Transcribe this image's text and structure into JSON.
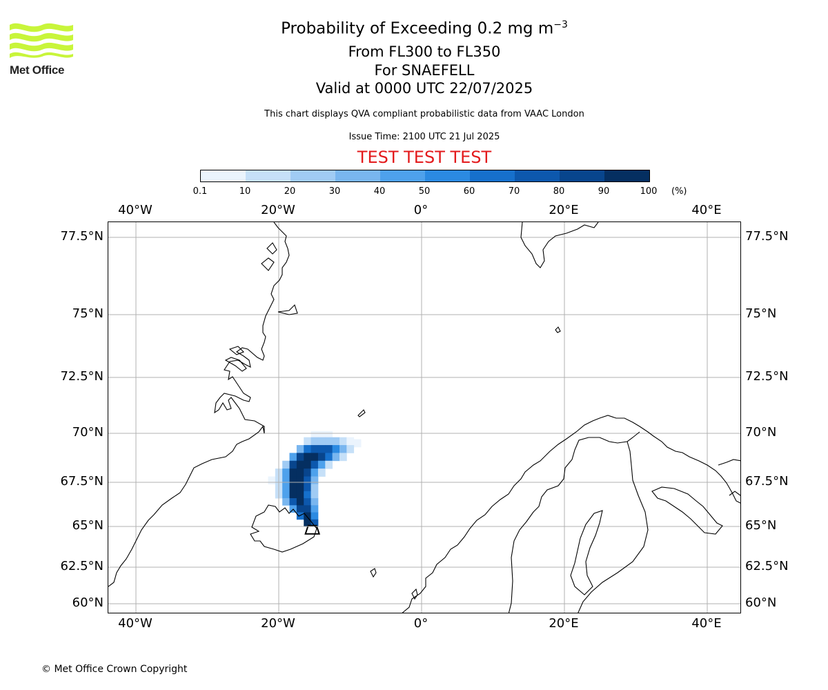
{
  "logo": {
    "text": "Met Office",
    "color": "#c8f53a"
  },
  "title": {
    "line1_main": "Probability of Exceeding 0.2 mg m",
    "line1_sup": "−3",
    "line2": "From FL300 to FL350",
    "line3": "For SNAEFELL",
    "line4": "Valid at 0000 UTC 22/07/2025"
  },
  "subtitle": "This chart displays QVA compliant probabilistic data from VAAC London",
  "issue_time": "Issue Time: 2100 UTC 21 Jul 2025",
  "test_banner": "TEST TEST TEST",
  "colorbar": {
    "ticks": [
      "0.1",
      "10",
      "20",
      "30",
      "40",
      "50",
      "60",
      "70",
      "80",
      "90",
      "100"
    ],
    "unit": "(%)",
    "colors": [
      "#ebf4fd",
      "#c6e0f8",
      "#a0cbf4",
      "#79b6ef",
      "#4ea1ec",
      "#2b8ae2",
      "#1670cc",
      "#0d58ad",
      "#08458d",
      "#052f61"
    ]
  },
  "axes": {
    "lon_labels": [
      "40°W",
      "20°W",
      "0°",
      "20°E",
      "40°E"
    ],
    "lat_labels": [
      "77.5°N",
      "75°N",
      "72.5°N",
      "70°N",
      "67.5°N",
      "65°N",
      "62.5°N",
      "60°N"
    ]
  },
  "plume": {
    "source": "Snaefell",
    "cells": [
      {
        "lon": -15.0,
        "lat": 69.9,
        "p": 5
      },
      {
        "lon": -14.0,
        "lat": 69.9,
        "p": 5
      },
      {
        "lon": -13.0,
        "lat": 69.9,
        "p": 5
      },
      {
        "lon": -16.0,
        "lat": 69.6,
        "p": 15
      },
      {
        "lon": -15.0,
        "lat": 69.6,
        "p": 25
      },
      {
        "lon": -14.0,
        "lat": 69.6,
        "p": 25
      },
      {
        "lon": -13.0,
        "lat": 69.6,
        "p": 25
      },
      {
        "lon": -12.0,
        "lat": 69.6,
        "p": 25
      },
      {
        "lon": -11.0,
        "lat": 69.6,
        "p": 15
      },
      {
        "lon": -10.0,
        "lat": 69.6,
        "p": 5
      },
      {
        "lon": -9.0,
        "lat": 69.5,
        "p": 5
      },
      {
        "lon": -17.0,
        "lat": 69.2,
        "p": 35
      },
      {
        "lon": -16.0,
        "lat": 69.2,
        "p": 65
      },
      {
        "lon": -15.0,
        "lat": 69.2,
        "p": 75
      },
      {
        "lon": -14.0,
        "lat": 69.2,
        "p": 75
      },
      {
        "lon": -13.0,
        "lat": 69.2,
        "p": 75
      },
      {
        "lon": -12.0,
        "lat": 69.2,
        "p": 55
      },
      {
        "lon": -11.0,
        "lat": 69.2,
        "p": 35
      },
      {
        "lon": -10.0,
        "lat": 69.2,
        "p": 15
      },
      {
        "lon": -18.0,
        "lat": 68.8,
        "p": 45
      },
      {
        "lon": -17.0,
        "lat": 68.8,
        "p": 85
      },
      {
        "lon": -16.0,
        "lat": 68.8,
        "p": 95
      },
      {
        "lon": -15.0,
        "lat": 68.8,
        "p": 95
      },
      {
        "lon": -14.0,
        "lat": 68.8,
        "p": 85
      },
      {
        "lon": -13.0,
        "lat": 68.8,
        "p": 65
      },
      {
        "lon": -12.0,
        "lat": 68.8,
        "p": 35
      },
      {
        "lon": -11.0,
        "lat": 68.8,
        "p": 15
      },
      {
        "lon": -19.0,
        "lat": 68.4,
        "p": 25
      },
      {
        "lon": -18.0,
        "lat": 68.4,
        "p": 85
      },
      {
        "lon": -17.0,
        "lat": 68.4,
        "p": 95
      },
      {
        "lon": -16.0,
        "lat": 68.4,
        "p": 95
      },
      {
        "lon": -15.0,
        "lat": 68.4,
        "p": 75
      },
      {
        "lon": -14.0,
        "lat": 68.4,
        "p": 45
      },
      {
        "lon": -13.0,
        "lat": 68.4,
        "p": 15
      },
      {
        "lon": -20.0,
        "lat": 68.0,
        "p": 15
      },
      {
        "lon": -19.0,
        "lat": 68.0,
        "p": 45
      },
      {
        "lon": -18.0,
        "lat": 68.0,
        "p": 95
      },
      {
        "lon": -17.0,
        "lat": 68.0,
        "p": 95
      },
      {
        "lon": -16.0,
        "lat": 68.0,
        "p": 85
      },
      {
        "lon": -15.0,
        "lat": 68.0,
        "p": 45
      },
      {
        "lon": -14.0,
        "lat": 68.0,
        "p": 15
      },
      {
        "lon": -21.0,
        "lat": 67.6,
        "p": 5
      },
      {
        "lon": -20.0,
        "lat": 67.6,
        "p": 15
      },
      {
        "lon": -19.0,
        "lat": 67.6,
        "p": 45
      },
      {
        "lon": -18.0,
        "lat": 67.6,
        "p": 95
      },
      {
        "lon": -17.0,
        "lat": 67.6,
        "p": 95
      },
      {
        "lon": -16.0,
        "lat": 67.6,
        "p": 75
      },
      {
        "lon": -15.0,
        "lat": 67.6,
        "p": 35
      },
      {
        "lon": -20.0,
        "lat": 67.2,
        "p": 15
      },
      {
        "lon": -19.0,
        "lat": 67.2,
        "p": 45
      },
      {
        "lon": -18.0,
        "lat": 67.2,
        "p": 95
      },
      {
        "lon": -17.0,
        "lat": 67.2,
        "p": 95
      },
      {
        "lon": -16.0,
        "lat": 67.2,
        "p": 75
      },
      {
        "lon": -15.0,
        "lat": 67.2,
        "p": 25
      },
      {
        "lon": -20.0,
        "lat": 66.8,
        "p": 15
      },
      {
        "lon": -19.0,
        "lat": 66.8,
        "p": 45
      },
      {
        "lon": -18.0,
        "lat": 66.8,
        "p": 95
      },
      {
        "lon": -17.0,
        "lat": 66.8,
        "p": 95
      },
      {
        "lon": -16.0,
        "lat": 66.8,
        "p": 65
      },
      {
        "lon": -15.0,
        "lat": 66.8,
        "p": 25
      },
      {
        "lon": -19.0,
        "lat": 66.4,
        "p": 35
      },
      {
        "lon": -18.0,
        "lat": 66.4,
        "p": 75
      },
      {
        "lon": -17.0,
        "lat": 66.4,
        "p": 95
      },
      {
        "lon": -16.0,
        "lat": 66.4,
        "p": 75
      },
      {
        "lon": -15.0,
        "lat": 66.4,
        "p": 35
      },
      {
        "lon": -18.0,
        "lat": 66.0,
        "p": 45
      },
      {
        "lon": -17.0,
        "lat": 66.0,
        "p": 85
      },
      {
        "lon": -16.0,
        "lat": 66.0,
        "p": 85
      },
      {
        "lon": -15.0,
        "lat": 66.0,
        "p": 45
      },
      {
        "lon": -17.0,
        "lat": 65.6,
        "p": 65
      },
      {
        "lon": -16.0,
        "lat": 65.6,
        "p": 95
      },
      {
        "lon": -15.0,
        "lat": 65.6,
        "p": 55
      },
      {
        "lon": -16.0,
        "lat": 65.2,
        "p": 95
      },
      {
        "lon": -15.0,
        "lat": 65.2,
        "p": 75
      }
    ]
  }
}
